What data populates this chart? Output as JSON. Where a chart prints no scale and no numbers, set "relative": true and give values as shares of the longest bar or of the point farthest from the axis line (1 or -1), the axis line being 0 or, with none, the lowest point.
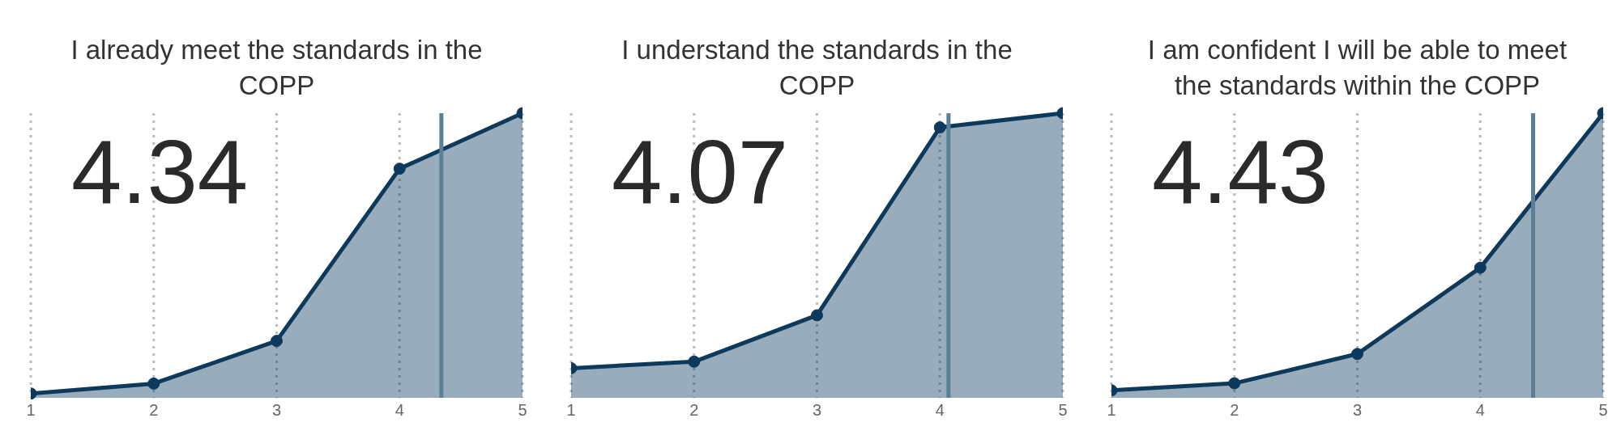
{
  "chart_data": [
    {
      "type": "area",
      "title": "I already meet the standards in the COPP",
      "x": [
        1,
        2,
        3,
        4,
        5
      ],
      "relative": true,
      "xlim": [
        1,
        5
      ],
      "xticks": [
        1,
        2,
        3,
        4,
        5
      ],
      "grid": "x",
      "marker": "circle",
      "series": [
        {
          "color": "#0d3a5c",
          "values": [
            0.015,
            0.05,
            0.2,
            0.805,
            1
          ]
        }
      ],
      "ref_lines": [
        {
          "axis": "x",
          "value": 4.34,
          "color": "#5a8096"
        }
      ],
      "annotations": [
        "4.34"
      ]
    },
    {
      "type": "area",
      "title": "I understand the standards in the COPP",
      "x": [
        1,
        2,
        3,
        4,
        5
      ],
      "relative": true,
      "xlim": [
        1,
        5
      ],
      "xticks": [
        1,
        2,
        3,
        4,
        5
      ],
      "grid": "x",
      "marker": "circle",
      "series": [
        {
          "color": "#0d3a5c",
          "values": [
            0.104,
            0.127,
            0.29,
            0.95,
            1
          ]
        }
      ],
      "ref_lines": [
        {
          "axis": "x",
          "value": 4.07,
          "color": "#5a8096"
        }
      ],
      "annotations": [
        "4.07"
      ]
    },
    {
      "type": "area",
      "title": "I am confident I will be able to meet the standards within the COPP",
      "x": [
        1,
        2,
        3,
        4,
        5
      ],
      "relative": true,
      "xlim": [
        1,
        5
      ],
      "xticks": [
        1,
        2,
        3,
        4,
        5
      ],
      "grid": "x",
      "marker": "circle",
      "series": [
        {
          "color": "#0d3a5c",
          "values": [
            0.026,
            0.051,
            0.154,
            0.457,
            1
          ]
        }
      ],
      "ref_lines": [
        {
          "axis": "x",
          "value": 4.43,
          "color": "#5a8096"
        }
      ],
      "annotations": [
        "4.43"
      ]
    }
  ]
}
